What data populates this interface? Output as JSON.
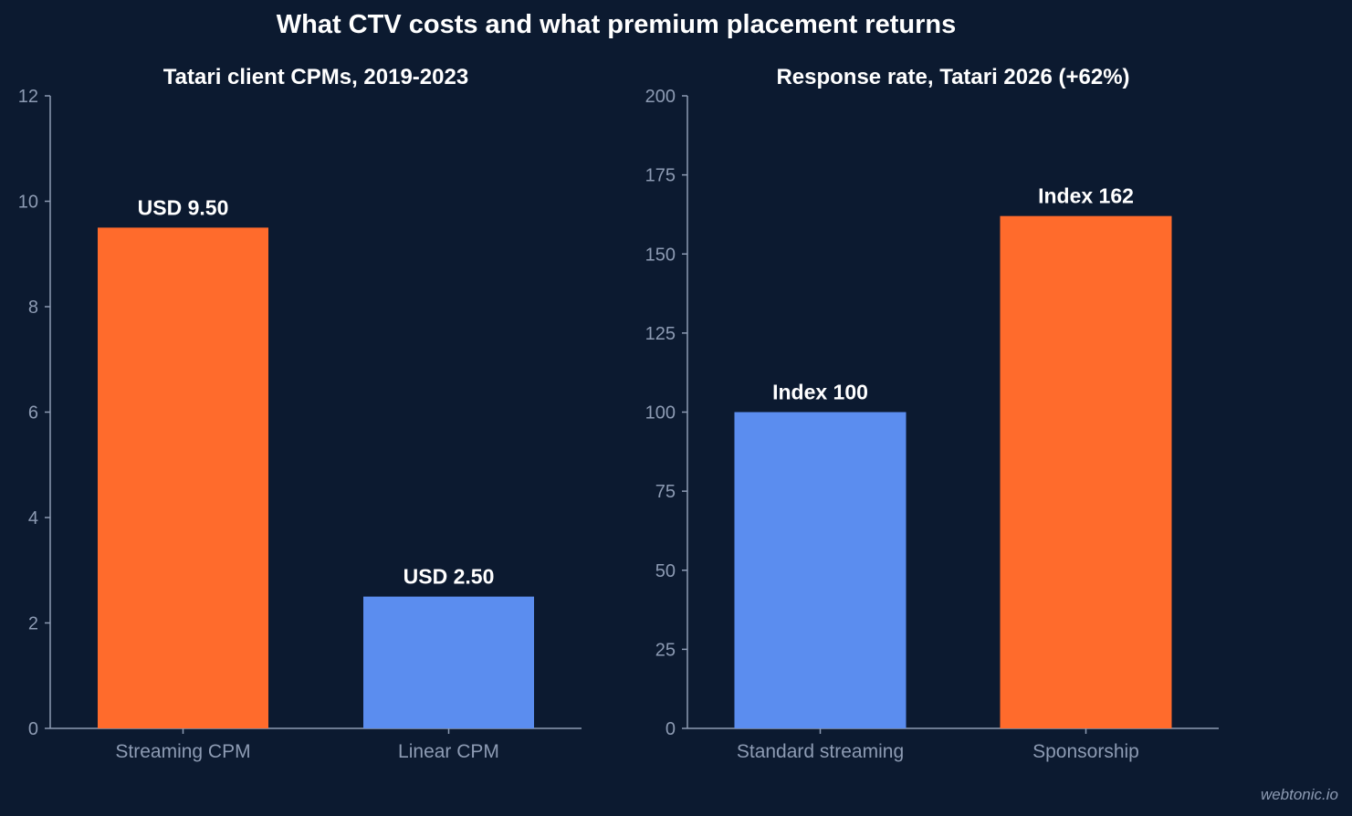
{
  "title": "What CTV costs and what premium placement returns",
  "watermark": "webtonic.io",
  "colors": {
    "background": "#0c1a30",
    "orange": "#ff6b2c",
    "blue": "#5b8def",
    "axis": "#8d9bb3",
    "text": "#ffffff"
  },
  "chart_data": [
    {
      "type": "bar",
      "title": "Tatari client CPMs, 2019-2023",
      "categories": [
        "Streaming CPM",
        "Linear CPM"
      ],
      "values": [
        9.5,
        2.5
      ],
      "data_labels": [
        "USD 9.50",
        "USD 2.50"
      ],
      "bar_colors": [
        "#ff6b2c",
        "#5b8def"
      ],
      "ylim": [
        0,
        12
      ],
      "yticks": [
        0,
        2,
        4,
        6,
        8,
        10,
        12
      ],
      "xlabel": "",
      "ylabel": "",
      "grid": false,
      "legend": "none"
    },
    {
      "type": "bar",
      "title": "Response rate, Tatari 2026 (+62%)",
      "categories": [
        "Standard streaming",
        "Sponsorship"
      ],
      "values": [
        100,
        162
      ],
      "data_labels": [
        "Index 100",
        "Index 162"
      ],
      "bar_colors": [
        "#5b8def",
        "#ff6b2c"
      ],
      "ylim": [
        0,
        200
      ],
      "yticks": [
        0,
        25,
        50,
        75,
        100,
        125,
        150,
        175,
        200
      ],
      "xlabel": "",
      "ylabel": "",
      "grid": false,
      "legend": "none"
    }
  ]
}
